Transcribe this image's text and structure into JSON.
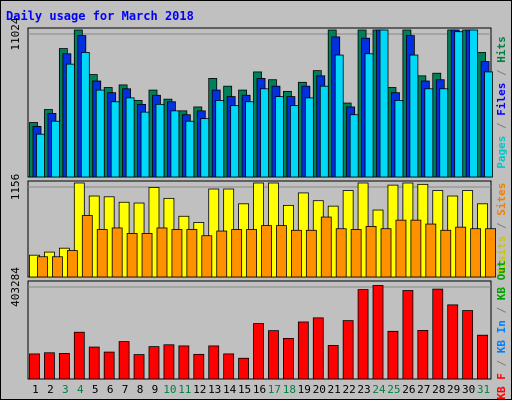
{
  "chart_data": {
    "type": "bar",
    "title": "Daily usage for March 2018",
    "title_color": "#0000ff",
    "categories": [
      "1",
      "2",
      "3",
      "4",
      "5",
      "6",
      "7",
      "8",
      "9",
      "10",
      "11",
      "12",
      "13",
      "14",
      "15",
      "16",
      "17",
      "18",
      "19",
      "20",
      "21",
      "22",
      "23",
      "24",
      "25",
      "26",
      "27",
      "28",
      "29",
      "30",
      "31"
    ],
    "weekend_days": [
      "3",
      "4",
      "10",
      "11",
      "17",
      "18",
      "24",
      "25",
      "31"
    ],
    "panels": [
      {
        "ylabel_value": "11024",
        "ymax": 11024,
        "legend": [
          {
            "text": "Pages",
            "color": "#00c8c8"
          },
          {
            "text": " / ",
            "color": "#808080"
          },
          {
            "text": "Files",
            "color": "#0000ff"
          },
          {
            "text": " / ",
            "color": "#808080"
          },
          {
            "text": "Hits",
            "color": "#008040"
          }
        ],
        "series": [
          {
            "name": "Hits",
            "color": "#00805a",
            "values": [
              4200,
              5200,
              9900,
              11400,
              7900,
              6900,
              7100,
              5900,
              6700,
              6000,
              5100,
              5400,
              7600,
              7000,
              6700,
              8100,
              7500,
              6600,
              7300,
              8200,
              11500,
              5700,
              11700,
              14300,
              6900,
              11400,
              7800,
              8000,
              13400,
              14200,
              9600
            ]
          },
          {
            "name": "Files",
            "color": "#0030e0",
            "values": [
              3900,
              4900,
              9500,
              10900,
              7400,
              6500,
              6800,
              5600,
              6300,
              5800,
              4800,
              5100,
              6700,
              6200,
              6300,
              7600,
              7000,
              6200,
              7000,
              7800,
              10800,
              5400,
              10700,
              13100,
              6500,
              10900,
              7400,
              7500,
              12900,
              13700,
              8900
            ]
          },
          {
            "name": "Pages",
            "color": "#00d8f8",
            "values": [
              3300,
              4300,
              8700,
              9600,
              6700,
              5800,
              6100,
              5000,
              5600,
              5100,
              4300,
              4500,
              5900,
              5500,
              5800,
              6800,
              6200,
              5500,
              6100,
              7000,
              9400,
              4800,
              9500,
              11400,
              5900,
              9400,
              6800,
              6800,
              11200,
              12200,
              8100
            ]
          }
        ]
      },
      {
        "ylabel_value": "1156",
        "ymax": 1156,
        "legend": [
          {
            "text": "Visits",
            "color": "#c8c800"
          },
          {
            "text": " / ",
            "color": "#808080"
          },
          {
            "text": "Sites",
            "color": "#f08000"
          }
        ],
        "series": [
          {
            "name": "Visits",
            "color": "#ffff00",
            "values": [
              280,
              320,
              370,
              1310,
              1040,
              1030,
              960,
              950,
              1150,
              1010,
              780,
              700,
              1130,
              1130,
              940,
              1300,
              1270,
              920,
              1080,
              980,
              910,
              1110,
              1310,
              860,
              1180,
              1220,
              1190,
              1110,
              1040,
              1110,
              940
            ]
          },
          {
            "name": "Sites",
            "color": "#ff9000",
            "values": [
              260,
              260,
              340,
              790,
              610,
              630,
              560,
              560,
              630,
              610,
              610,
              530,
              590,
              610,
              610,
              660,
              660,
              600,
              600,
              770,
              620,
              610,
              650,
              620,
              730,
              730,
              680,
              600,
              640,
              620,
              620
            ]
          }
        ]
      },
      {
        "ylabel_value": "403284",
        "ymax": 403284,
        "legend": [
          {
            "text": "KB F",
            "color": "#ff0000"
          },
          {
            "text": " / ",
            "color": "#808080"
          },
          {
            "text": "KB In",
            "color": "#0080ff"
          },
          {
            "text": " / ",
            "color": "#808080"
          },
          {
            "text": "KB Out",
            "color": "#00a000"
          }
        ],
        "series": [
          {
            "name": "KB F",
            "color": "#ff0000",
            "values": [
              110000,
              115000,
              112000,
              205000,
              140000,
              118000,
              164000,
              107000,
              142000,
              150000,
              145000,
              108000,
              145000,
              110000,
              91000,
              243000,
              212000,
              178000,
              250000,
              268000,
              147000,
              256000,
              392000,
              410000,
              209000,
              388000,
              213000,
              394000,
              325000,
              300000,
              192000
            ]
          }
        ]
      }
    ]
  }
}
